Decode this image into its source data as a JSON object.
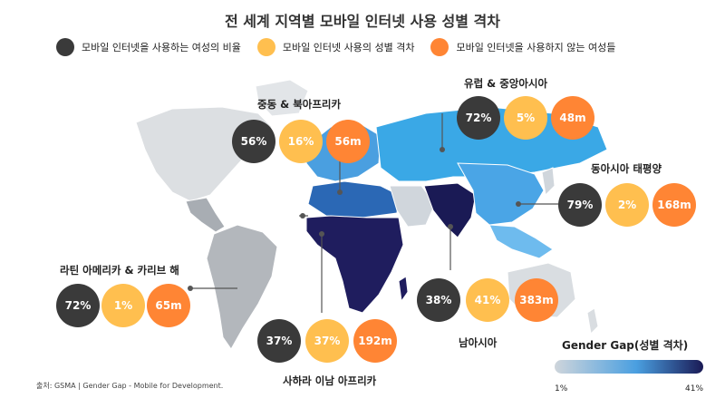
{
  "title": "전 세계 지역별 모바일 인터넷 사용 성별 격차",
  "legend": [
    {
      "label": "모바일 인터넷을 사용하는 여성의 비율",
      "color": "#3a3a3a"
    },
    {
      "label": "모바일 인터넷 사용의 성별 격차",
      "color": "#ffbf4f"
    },
    {
      "label": "모바일 인터넷을 사용하지 않는 여성들",
      "color": "#ff8534"
    }
  ],
  "regions": {
    "europe_central_asia": {
      "name": "유럽 & 중앙아시아",
      "share": "72%",
      "gap": "5%",
      "unconnected": "48m"
    },
    "mena": {
      "name": "중동 & 북아프리카",
      "share": "56%",
      "gap": "16%",
      "unconnected": "56m"
    },
    "east_asia_pacific": {
      "name": "동아시아 태평양",
      "share": "79%",
      "gap": "2%",
      "unconnected": "168m"
    },
    "latam": {
      "name": "라틴 아메리카 & 카리브 해",
      "share": "72%",
      "gap": "1%",
      "unconnected": "65m"
    },
    "south_asia": {
      "name": "남아시아",
      "share": "38%",
      "gap": "41%",
      "unconnected": "383m"
    },
    "ssa": {
      "name": "사하라 이남 아프리카",
      "share": "37%",
      "gap": "37%",
      "unconnected": "192m"
    }
  },
  "scale": {
    "title": "Gender Gap(성별 격차)",
    "min": "1%",
    "max": "41%",
    "colors": {
      "low": "#cfd5db",
      "mid": "#4a9fe0",
      "high": "#1a1a55"
    }
  },
  "source": "출처: GSMA | Gender Gap - Mobile for Development."
}
